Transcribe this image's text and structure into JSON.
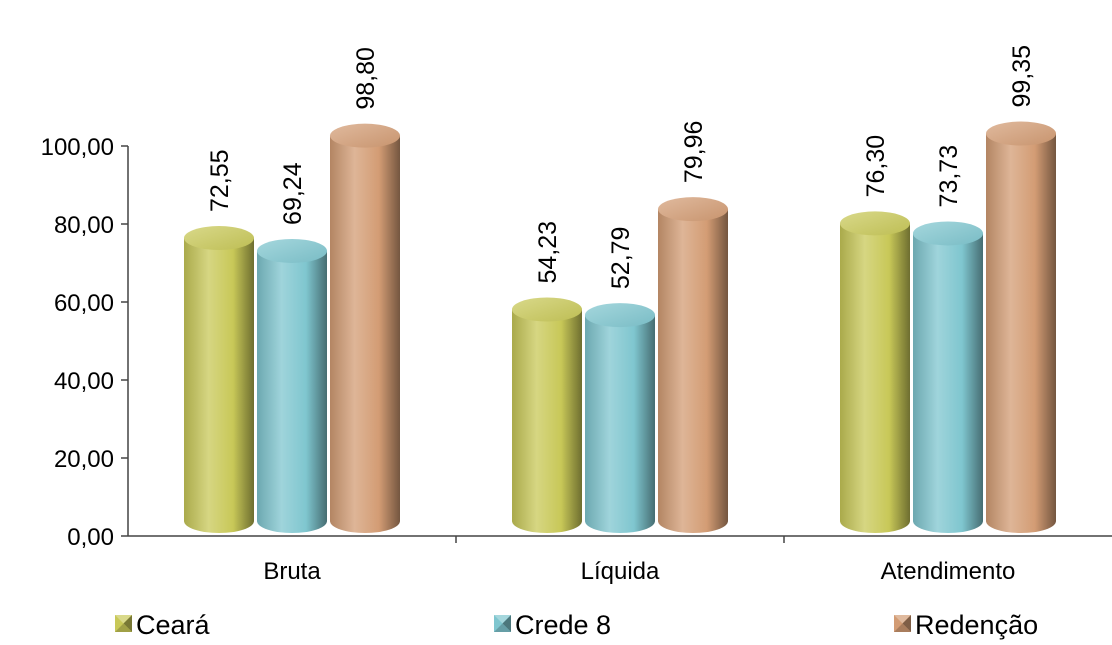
{
  "chart_data": {
    "type": "bar",
    "title": "",
    "xlabel": "",
    "ylabel": "",
    "categories": [
      "Bruta",
      "Líquida",
      "Atendimento"
    ],
    "series": [
      {
        "name": "Ceará",
        "values": [
          72.55,
          54.23,
          76.3
        ],
        "labels": [
          "72,55",
          "54,23",
          "76,30"
        ],
        "color": "#c8c858"
      },
      {
        "name": "Crede 8",
        "values": [
          69.24,
          52.79,
          73.73
        ],
        "labels": [
          "69,24",
          "52,79",
          "73,73"
        ],
        "color": "#7fc6cf"
      },
      {
        "name": "Redenção",
        "values": [
          98.8,
          79.96,
          99.35
        ],
        "labels": [
          "98,80",
          "79,96",
          "99,35"
        ],
        "color": "#d39c74"
      }
    ],
    "ylim": [
      0,
      100
    ],
    "yticks": [
      0,
      20,
      40,
      60,
      80,
      100
    ],
    "ytick_labels": [
      "0,00",
      "20,00",
      "40,00",
      "60,00",
      "80,00",
      "100,00"
    ],
    "grid": false,
    "legend_position": "bottom",
    "bar_style": "3d-cylinder"
  }
}
